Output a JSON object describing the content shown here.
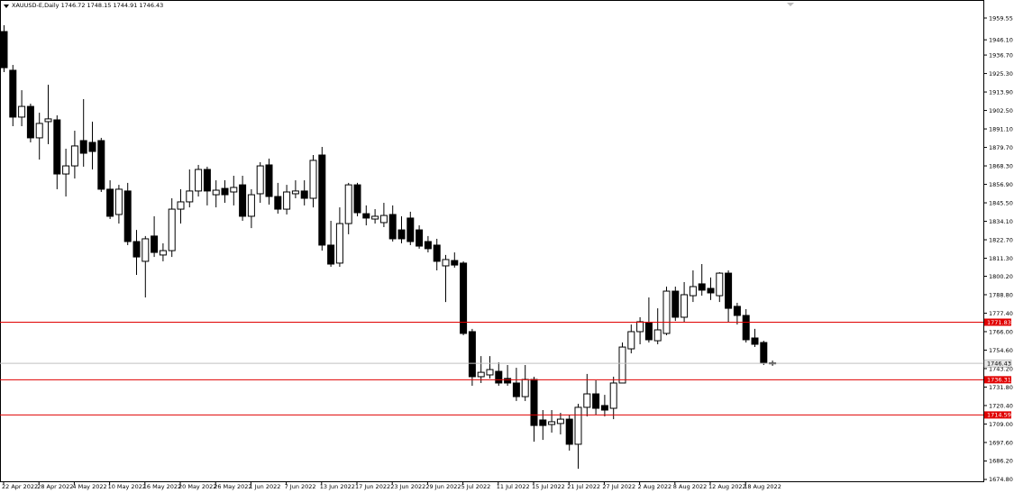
{
  "chart_data": {
    "type": "candlestick",
    "title": "XAUUSD-E,Daily  1746.72 1748.15 1744.91 1746.43",
    "categories": [
      "22 Apr 2022",
      null,
      null,
      null,
      "28 Apr 2022",
      null,
      null,
      null,
      "4 May 2022",
      null,
      null,
      null,
      "10 May 2022",
      null,
      null,
      null,
      "16 May 2022",
      null,
      null,
      null,
      "20 May 2022",
      null,
      null,
      null,
      "26 May 2022",
      null,
      null,
      null,
      "1 Jun 2022",
      null,
      null,
      null,
      "7 Jun 2022",
      null,
      null,
      null,
      "13 Jun 2022",
      null,
      null,
      null,
      "17 Jun 2022",
      null,
      null,
      null,
      "23 Jun 2022",
      null,
      null,
      null,
      "29 Jun 2022",
      null,
      null,
      null,
      "5 Jul 2022",
      null,
      null,
      null,
      "11 Jul 2022",
      null,
      null,
      null,
      "15 Jul 2022",
      null,
      null,
      null,
      "21 Jul 2022",
      null,
      null,
      null,
      "27 Jul 2022",
      null,
      null,
      null,
      "2 Aug 2022",
      null,
      null,
      null,
      "8 Aug 2022",
      null,
      null,
      null,
      "12 Aug 2022",
      null,
      null,
      null,
      "18 Aug 2022",
      null,
      null,
      null
    ],
    "open": [
      1951.2,
      1927.3,
      1898.4,
      1905.0,
      1885.6,
      1895.6,
      1896.7,
      1863.3,
      1868.3,
      1883.9,
      1882.8,
      1883.9,
      1853.9,
      1838.3,
      1852.8,
      1821.6,
      1809.4,
      1825.0,
      1813.3,
      1816.0,
      1841.6,
      1846.1,
      1852.8,
      1866.1,
      1850.5,
      1854.4,
      1852.2,
      1856.6,
      1837.2,
      1851.1,
      1868.9,
      1849.4,
      1841.6,
      1851.1,
      1852.8,
      1848.3,
      1875.0,
      1819.4,
      1808.3,
      1832.7,
      1856.6,
      1838.8,
      1835.5,
      1833.3,
      1838.3,
      1828.8,
      1836.1,
      1828.8,
      1821.6,
      1819.4,
      1806.6,
      1809.9,
      1808.3,
      1766.0,
      1738.2,
      1739.3,
      1741.5,
      1737.1,
      1734.3,
      1725.9,
      1736.5,
      1711.5,
      1708.7,
      1709.3,
      1712.0,
      1696.5,
      1719.3,
      1727.6,
      1720.4,
      1718.7,
      1734.3,
      1755.4,
      1766.0,
      1771.6,
      1760.4,
      1764.9,
      1791.0,
      1774.9,
      1788.2,
      1795.5,
      1792.7,
      1788.2,
      1802.1,
      1781.6,
      1776.0,
      1762.1,
      1759.3,
      1746.72
    ],
    "high": [
      1955.1,
      1930.6,
      1915.0,
      1906.7,
      1901.1,
      1918.4,
      1899.5,
      1878.9,
      1890.0,
      1909.5,
      1895.6,
      1885.6,
      1859.4,
      1856.6,
      1857.8,
      1828.8,
      1825.0,
      1837.2,
      1820.5,
      1848.3,
      1853.9,
      1866.1,
      1868.9,
      1867.8,
      1859.4,
      1859.4,
      1862.2,
      1862.2,
      1853.9,
      1870.6,
      1872.8,
      1857.8,
      1856.6,
      1859.4,
      1859.4,
      1875.0,
      1880.0,
      1834.4,
      1842.7,
      1857.8,
      1857.8,
      1843.9,
      1841.6,
      1845.5,
      1843.9,
      1837.2,
      1840.0,
      1831.6,
      1825.0,
      1823.3,
      1813.3,
      1814.9,
      1809.4,
      1767.7,
      1750.9,
      1750.9,
      1747.1,
      1745.4,
      1743.7,
      1745.4,
      1738.2,
      1717.6,
      1717.6,
      1715.9,
      1714.8,
      1721.5,
      1739.9,
      1735.9,
      1727.0,
      1738.2,
      1759.3,
      1770.4,
      1774.9,
      1787.1,
      1780.4,
      1793.8,
      1793.8,
      1796.6,
      1803.8,
      1807.7,
      1799.4,
      1802.7,
      1803.8,
      1783.8,
      1779.9,
      1767.7,
      1760.4,
      1748.15
    ],
    "low": [
      1926.2,
      1892.8,
      1892.8,
      1882.8,
      1872.2,
      1881.7,
      1853.9,
      1849.4,
      1860.5,
      1867.8,
      1866.1,
      1852.2,
      1835.5,
      1832.7,
      1819.4,
      1801.0,
      1787.1,
      1812.1,
      1809.4,
      1812.1,
      1832.7,
      1842.7,
      1849.4,
      1843.9,
      1842.7,
      1845.5,
      1843.9,
      1834.4,
      1829.9,
      1845.5,
      1844.4,
      1838.8,
      1838.3,
      1848.3,
      1843.9,
      1842.7,
      1816.0,
      1806.0,
      1806.0,
      1826.1,
      1837.2,
      1831.6,
      1832.7,
      1830.5,
      1821.6,
      1820.5,
      1819.4,
      1817.2,
      1814.9,
      1803.8,
      1784.3,
      1805.5,
      1763.8,
      1732.6,
      1734.3,
      1737.1,
      1732.6,
      1732.6,
      1723.2,
      1723.2,
      1698.1,
      1699.2,
      1703.7,
      1702.6,
      1692.6,
      1681.4,
      1713.7,
      1714.8,
      1713.7,
      1712.0,
      1734.3,
      1752.6,
      1758.2,
      1759.3,
      1758.2,
      1763.8,
      1772.6,
      1771.6,
      1784.3,
      1788.2,
      1785.5,
      1784.3,
      1772.1,
      1770.4,
      1759.3,
      1756.5,
      1745.4,
      1744.91
    ],
    "close": [
      1928.9,
      1898.4,
      1905.0,
      1885.6,
      1894.5,
      1897.3,
      1863.3,
      1868.3,
      1880.6,
      1876.1,
      1877.2,
      1853.9,
      1837.2,
      1853.9,
      1821.6,
      1812.1,
      1823.3,
      1814.9,
      1816.0,
      1841.6,
      1846.1,
      1852.8,
      1866.1,
      1852.8,
      1853.3,
      1850.5,
      1855.0,
      1837.2,
      1850.5,
      1868.3,
      1849.4,
      1841.6,
      1852.2,
      1852.8,
      1848.3,
      1871.7,
      1819.4,
      1807.7,
      1832.7,
      1856.6,
      1839.4,
      1836.1,
      1837.2,
      1837.7,
      1823.3,
      1823.3,
      1821.6,
      1818.8,
      1817.2,
      1809.4,
      1810.5,
      1807.1,
      1764.9,
      1738.2,
      1740.9,
      1742.6,
      1734.3,
      1734.3,
      1725.9,
      1736.5,
      1708.1,
      1708.1,
      1710.4,
      1712.0,
      1696.5,
      1719.3,
      1727.6,
      1718.7,
      1717.6,
      1734.3,
      1756.5,
      1766.0,
      1772.1,
      1761.0,
      1767.1,
      1791.0,
      1774.9,
      1788.8,
      1793.8,
      1791.6,
      1789.9,
      1802.1,
      1780.4,
      1776.0,
      1761.0,
      1758.2,
      1746.5,
      1746.43
    ],
    "ylim": [
      1673.1,
      1969.0
    ],
    "yticks": [
      1959.55,
      {
        "value": 1946.1,
        "label": "1946.10"
      },
      {
        "value": 1936.7,
        "label": "1936.70"
      },
      {
        "value": 1925.3,
        "label": "1925.30"
      },
      {
        "value": 1913.9,
        "label": "1913.90"
      },
      {
        "value": 1902.5,
        "label": "1902.50"
      },
      {
        "value": 1891.1,
        "label": "1891.10"
      },
      {
        "value": 1879.7,
        "label": "1879.70"
      },
      {
        "value": 1868.3,
        "label": "1868.30"
      },
      {
        "value": 1856.9,
        "label": "1856.90"
      },
      {
        "value": 1845.5,
        "label": "1845.50"
      },
      {
        "value": 1834.1,
        "label": "1834.10"
      },
      {
        "value": 1822.7,
        "label": "1822.70"
      },
      {
        "value": 1811.3,
        "label": "1811.30"
      },
      {
        "value": 1800.2,
        "label": "1800.20"
      },
      {
        "value": 1788.8,
        "label": "1788.80"
      },
      {
        "value": 1777.4,
        "label": "1777.40"
      },
      {
        "value": 1766,
        "label": "1766.00"
      },
      {
        "value": 1754.6,
        "label": "1754.60"
      },
      {
        "value": 1743.2,
        "label": "1743.20"
      },
      {
        "value": 1731.8,
        "label": "1731.80"
      },
      {
        "value": 1720.4,
        "label": "1720.40"
      },
      {
        "value": 1709,
        "label": "1709.00"
      },
      {
        "value": 1697.6,
        "label": "1697.60"
      },
      {
        "value": 1686.2,
        "label": "1686.20"
      },
      {
        "value": 1674.8,
        "label": "1674.80"
      }
    ],
    "hlines": [
      {
        "value": 1771.83,
        "color": "#e00000"
      },
      {
        "value": 1736.31,
        "color": "#e00000"
      },
      {
        "value": 1714.59,
        "color": "#e00000"
      }
    ],
    "current_price": 1746.43,
    "up_color": "#ffffff",
    "down_color": "#000000"
  }
}
